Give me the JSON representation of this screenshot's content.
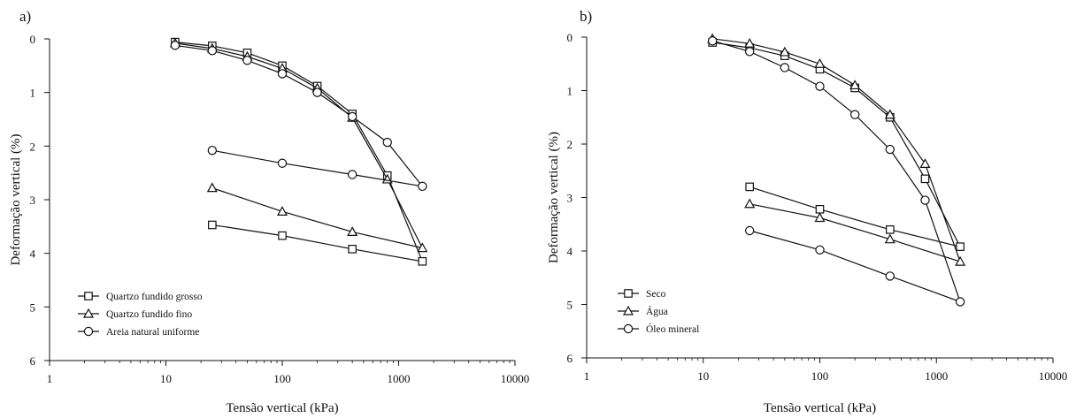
{
  "chart_data": [
    {
      "type": "line",
      "panel_label": "a)",
      "xlabel": "Tensão vertical (kPa)",
      "ylabel": "Deformação vertical (%)",
      "xscale": "log",
      "xlim": [
        1,
        10000
      ],
      "ylim": [
        0,
        6
      ],
      "y_inverted": true,
      "x_ticks": [
        "1",
        "10",
        "100",
        "1000",
        "10000"
      ],
      "y_ticks": [
        "0",
        "1",
        "2",
        "3",
        "4",
        "5",
        "6"
      ],
      "grid": false,
      "legend_position": "bottom-left",
      "series": [
        {
          "name": "Quartzo fundido grosso",
          "marker": "square",
          "x": [
            12,
            25,
            50,
            100,
            200,
            400,
            800,
            1600,
            400,
            100,
            25
          ],
          "y": [
            0.06,
            0.13,
            0.26,
            0.5,
            0.88,
            1.4,
            2.55,
            4.15,
            3.92,
            3.67,
            3.47
          ]
        },
        {
          "name": "Quartzo fundido fino",
          "marker": "triangle",
          "x": [
            12,
            25,
            50,
            100,
            200,
            400,
            800,
            1600,
            400,
            100,
            25
          ],
          "y": [
            0.08,
            0.18,
            0.33,
            0.55,
            0.92,
            1.47,
            2.62,
            3.9,
            3.6,
            3.22,
            2.78
          ]
        },
        {
          "name": "Areia natural uniforme",
          "marker": "circle",
          "x": [
            12,
            25,
            50,
            100,
            200,
            400,
            800,
            1600,
            400,
            100,
            25
          ],
          "y": [
            0.12,
            0.22,
            0.4,
            0.65,
            1.0,
            1.45,
            1.93,
            2.75,
            2.53,
            2.32,
            2.08
          ]
        }
      ]
    },
    {
      "type": "line",
      "panel_label": "b)",
      "xlabel": "Tensão vertical (kPa)",
      "ylabel": "Deformação vertical (%)",
      "xscale": "log",
      "xlim": [
        1,
        10000
      ],
      "ylim": [
        0,
        6
      ],
      "y_inverted": true,
      "x_ticks": [
        "1",
        "10",
        "100",
        "1000",
        "10000"
      ],
      "y_ticks": [
        "0",
        "1",
        "2",
        "3",
        "4",
        "5",
        "6"
      ],
      "grid": false,
      "legend_position": "bottom-left",
      "series": [
        {
          "name": "Seco",
          "marker": "square",
          "x": [
            12,
            25,
            50,
            100,
            200,
            400,
            800,
            1600,
            400,
            100,
            25
          ],
          "y": [
            0.1,
            0.2,
            0.35,
            0.6,
            0.95,
            1.5,
            2.65,
            3.92,
            3.6,
            3.22,
            2.8
          ]
        },
        {
          "name": "Água",
          "marker": "triangle",
          "x": [
            12,
            25,
            50,
            100,
            200,
            400,
            800,
            1600,
            400,
            100,
            25
          ],
          "y": [
            0.03,
            0.12,
            0.28,
            0.5,
            0.9,
            1.45,
            2.37,
            4.2,
            3.78,
            3.38,
            3.12
          ]
        },
        {
          "name": "Óleo mineral",
          "marker": "circle",
          "x": [
            12,
            25,
            50,
            100,
            200,
            400,
            800,
            1600,
            400,
            100,
            25
          ],
          "y": [
            0.07,
            0.27,
            0.57,
            0.92,
            1.45,
            2.1,
            3.05,
            4.95,
            4.47,
            3.98,
            3.62
          ]
        }
      ]
    }
  ]
}
